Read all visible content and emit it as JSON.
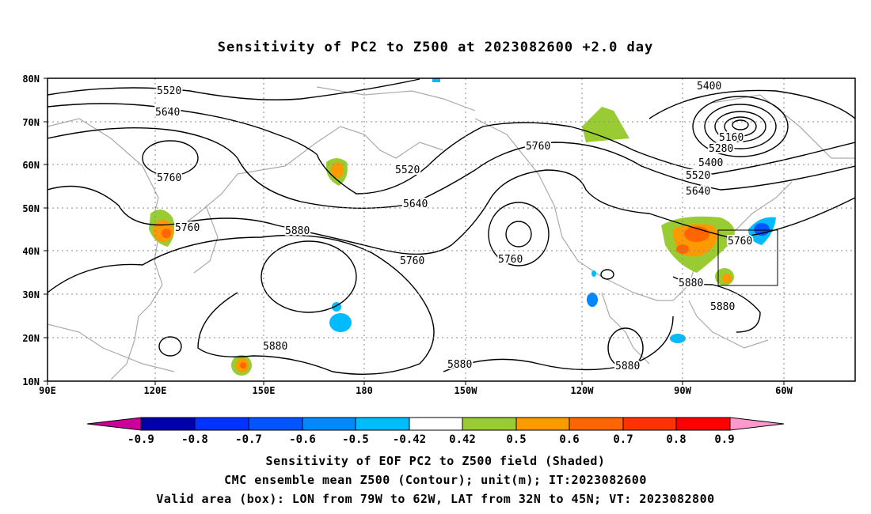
{
  "title": "Sensitivity of PC2 to Z500 at 2023082600 +2.0 day",
  "lat_labels": [
    "80N",
    "70N",
    "60N",
    "50N",
    "40N",
    "30N",
    "20N",
    "10N"
  ],
  "lon_labels": [
    "90E",
    "120E",
    "150E",
    "180",
    "150W",
    "120W",
    "90W",
    "60W"
  ],
  "contour_labels": [
    "5520",
    "5640",
    "5760",
    "5760",
    "5880",
    "5880",
    "5520",
    "5640",
    "5760",
    "5760",
    "5760",
    "5400",
    "5160",
    "5280",
    "5400",
    "5520",
    "5640",
    "5760",
    "5880",
    "5880",
    "5880",
    "5880"
  ],
  "colorbar": {
    "labels": [
      "-0.9",
      "-0.8",
      "-0.7",
      "-0.6",
      "-0.5",
      "-0.42",
      "0.42",
      "0.5",
      "0.6",
      "0.7",
      "0.8",
      "0.9"
    ],
    "colors": [
      "#cc0099",
      "#0000aa",
      "#0033ff",
      "#0055ff",
      "#0088ff",
      "#00bbff",
      "#ffffff",
      "#99cc33",
      "#ff9900",
      "#ff6600",
      "#ff3300",
      "#ff0000",
      "#ff99cc"
    ]
  },
  "footer": {
    "line1": "Sensitivity of EOF PC2 to Z500 field (Shaded)",
    "line2": "CMC ensemble mean Z500 (Contour); unit(m); IT:2023082600",
    "line3": "Valid area (box): LON from 79W to 62W, LAT from 32N to 45N; VT: 2023082800"
  }
}
